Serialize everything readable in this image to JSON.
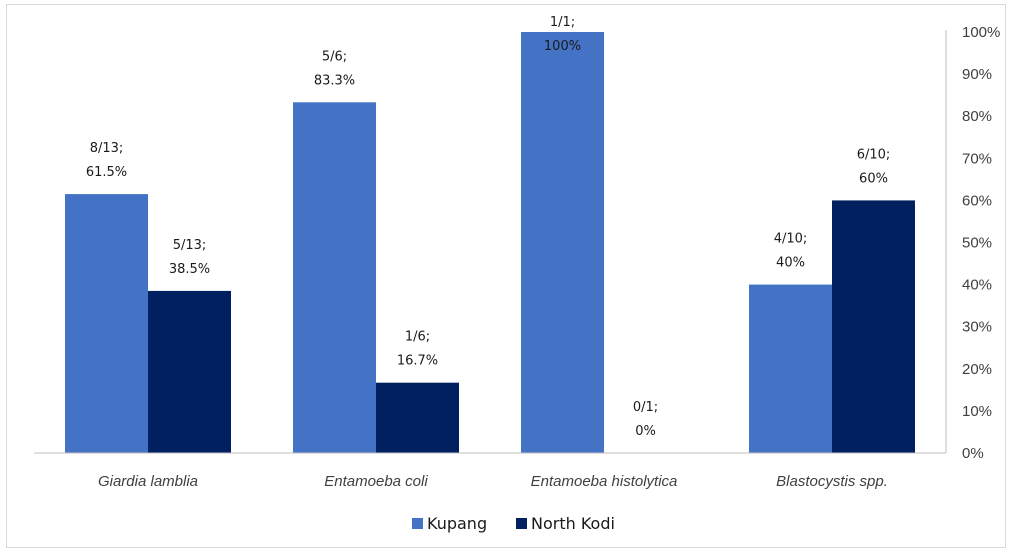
{
  "chart_data": {
    "type": "bar",
    "categories": [
      "Giardia lamblia",
      "Entamoeba coli",
      "Entamoeba histolytica",
      "Blastocystis spp."
    ],
    "series": [
      {
        "name": "Kupang",
        "color": "#4472c4",
        "values": [
          61.5,
          83.3,
          100,
          40
        ],
        "labels": [
          [
            "8/13;",
            "61.5%"
          ],
          [
            "5/6;",
            "83.3%"
          ],
          [
            "1/1;",
            "100%"
          ],
          [
            "4/10;",
            "40%"
          ]
        ]
      },
      {
        "name": "North Kodi",
        "color": "#002060",
        "values": [
          38.5,
          16.7,
          0,
          60
        ],
        "labels": [
          [
            "5/13;",
            "38.5%"
          ],
          [
            "1/6;",
            "16.7%"
          ],
          [
            "0/1;",
            "0%"
          ],
          [
            "6/10;",
            "60%"
          ]
        ]
      }
    ],
    "y_axis": {
      "position": "right",
      "range": [
        0,
        100
      ],
      "ticks": [
        "0%",
        "10%",
        "20%",
        "30%",
        "40%",
        "50%",
        "60%",
        "70%",
        "80%",
        "90%",
        "100%"
      ]
    },
    "title": "",
    "xlabel": "",
    "ylabel": "",
    "grid": false,
    "legend_position": "bottom-center"
  }
}
